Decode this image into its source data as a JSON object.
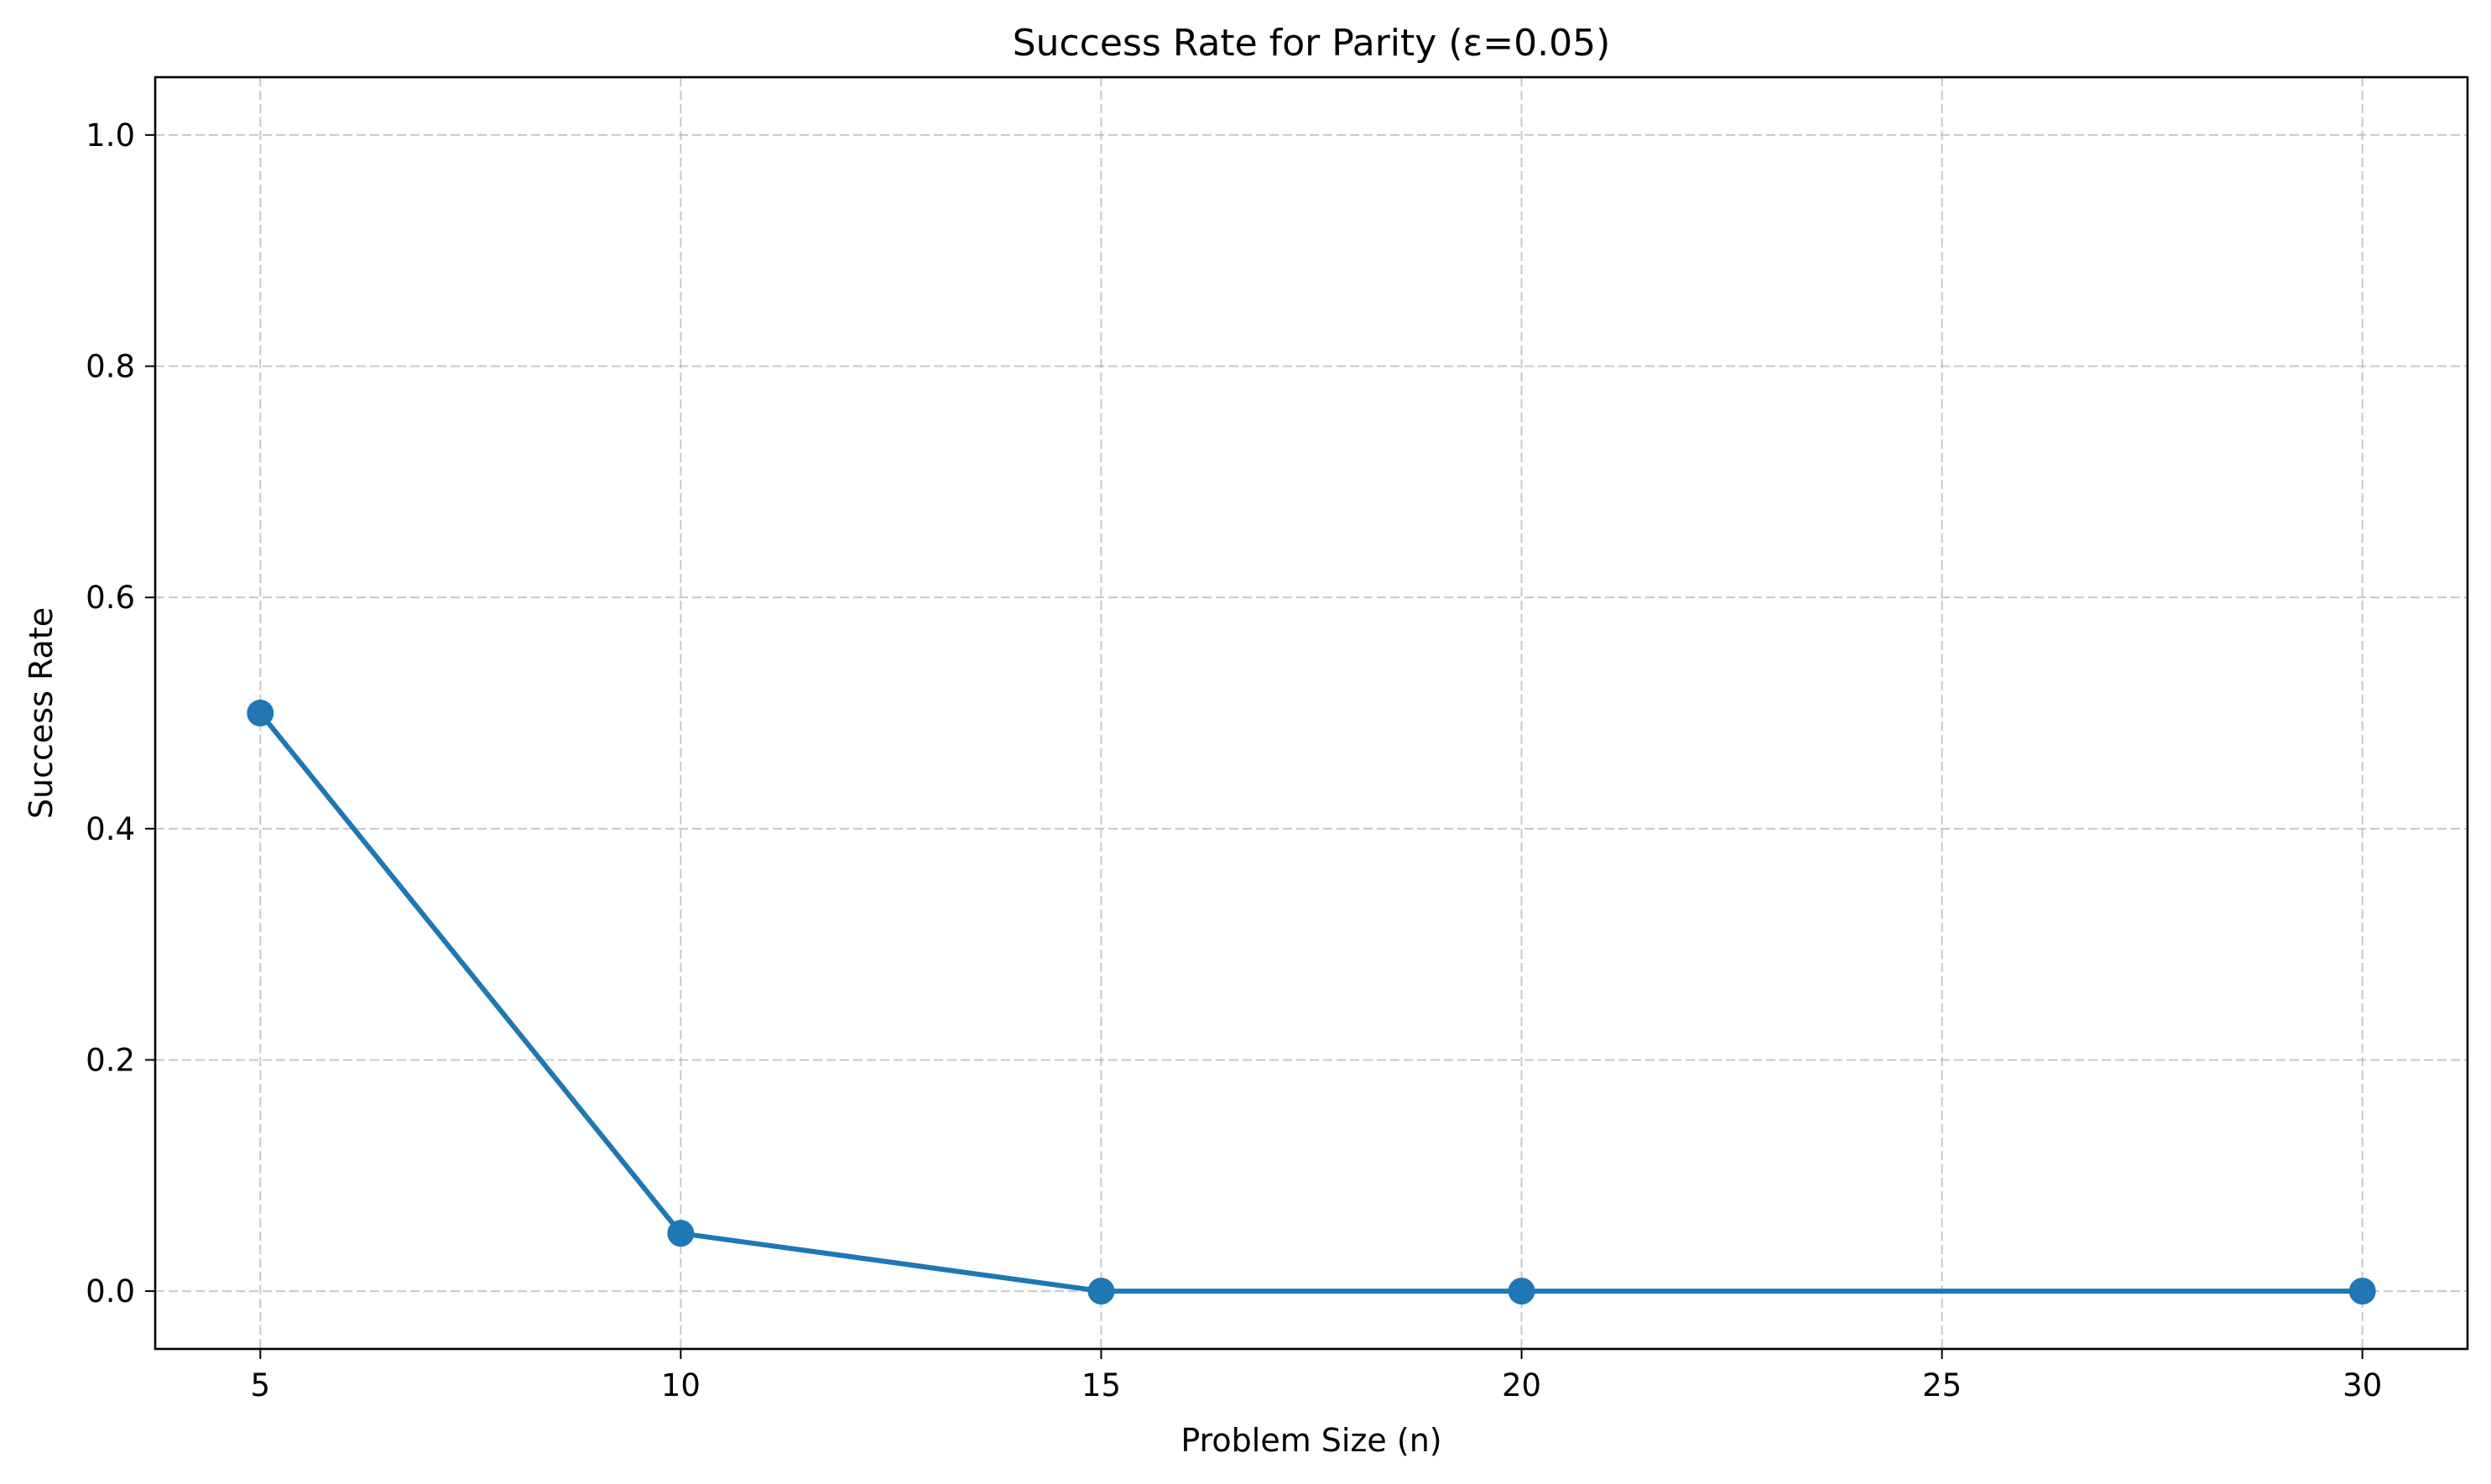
{
  "chart_data": {
    "type": "line",
    "title": "Success Rate for Parity (ε=0.05)",
    "xlabel": "Problem Size (n)",
    "ylabel": "Success Rate",
    "x": [
      5,
      10,
      15,
      20,
      30
    ],
    "series": [
      {
        "values": [
          0.5,
          0.05,
          0.0,
          0.0,
          0.0
        ]
      }
    ],
    "xlim": [
      3.75,
      31.25
    ],
    "ylim": [
      -0.05,
      1.05
    ],
    "xticks": [
      5,
      10,
      15,
      20,
      25,
      30
    ],
    "yticks": [
      0.0,
      0.2,
      0.4,
      0.6,
      0.8,
      1.0
    ],
    "xtick_labels": [
      "5",
      "10",
      "15",
      "20",
      "25",
      "30"
    ],
    "ytick_labels": [
      "0.0",
      "0.2",
      "0.4",
      "0.6",
      "0.8",
      "1.0"
    ],
    "grid": true,
    "grid_style": "dashed",
    "line_color": "#1f77b4",
    "marker": "circle"
  }
}
